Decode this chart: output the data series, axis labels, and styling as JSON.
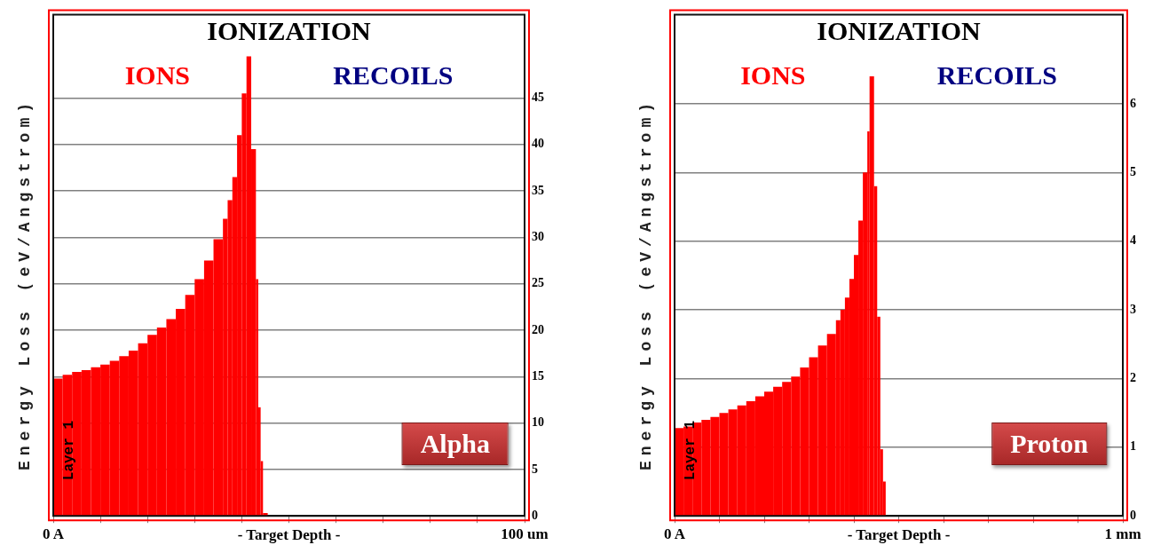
{
  "chart_data": [
    {
      "type": "histogram",
      "title": "IONIZATION",
      "xlabel": "- Target Depth -",
      "ylabel": "Energy Loss (eV/Angstrom)",
      "bins": [
        0,
        2,
        4,
        6,
        8,
        10,
        12,
        14,
        16,
        18,
        20,
        22,
        24,
        26,
        28,
        30,
        32,
        34,
        36,
        37,
        38,
        39,
        40,
        41,
        42,
        43,
        43.5,
        44,
        44.5,
        45.5
      ],
      "series": [
        {
          "name": "IONS",
          "color": "#ff0000",
          "values": [
            14.8,
            15.2,
            15.5,
            15.7,
            16.0,
            16.3,
            16.7,
            17.2,
            17.8,
            18.6,
            19.5,
            20.3,
            21.2,
            22.3,
            23.8,
            25.5,
            27.5,
            29.8,
            32,
            34,
            36.5,
            41,
            45.5,
            49.5,
            39.5,
            25.5,
            11.7,
            5.9,
            0.3
          ]
        }
      ],
      "xlim": [
        0,
        100
      ],
      "xticks": [
        {
          "value": 0,
          "label": "0 A"
        },
        {
          "value": 10,
          "label": null
        },
        {
          "value": 20,
          "label": null
        },
        {
          "value": 30,
          "label": null
        },
        {
          "value": 40,
          "label": null
        },
        {
          "value": 50,
          "label": null
        },
        {
          "value": 60,
          "label": null
        },
        {
          "value": 70,
          "label": null
        },
        {
          "value": 80,
          "label": null
        },
        {
          "value": 90,
          "label": null
        },
        {
          "value": 100,
          "label": "100 um"
        }
      ],
      "ylim": [
        0,
        54
      ],
      "yticks": [
        0,
        5,
        10,
        15,
        20,
        25,
        30,
        35,
        40,
        45
      ],
      "grid": "y",
      "legend": "top",
      "annotations": [
        "Layer 1",
        "Alpha",
        "RECOILS"
      ]
    },
    {
      "type": "histogram",
      "title": "IONIZATION",
      "xlabel": "- Target Depth -",
      "ylabel": "Energy Loss (eV/Angstrom)",
      "bins": [
        0,
        0.02,
        0.04,
        0.06,
        0.08,
        0.1,
        0.12,
        0.14,
        0.16,
        0.18,
        0.2,
        0.22,
        0.24,
        0.26,
        0.28,
        0.3,
        0.32,
        0.34,
        0.36,
        0.37,
        0.38,
        0.39,
        0.4,
        0.41,
        0.42,
        0.43,
        0.435,
        0.445,
        0.452,
        0.459,
        0.465,
        0.471
      ],
      "series": [
        {
          "name": "IONS",
          "color": "#ff0000",
          "values": [
            1.28,
            1.3,
            1.36,
            1.4,
            1.44,
            1.5,
            1.55,
            1.61,
            1.67,
            1.74,
            1.81,
            1.88,
            1.95,
            2.03,
            2.16,
            2.31,
            2.48,
            2.65,
            2.85,
            3.0,
            3.18,
            3.45,
            3.8,
            4.3,
            5.0,
            5.6,
            6.4,
            4.8,
            2.9,
            0.97,
            0.5
          ]
        }
      ],
      "xlim": [
        0,
        1
      ],
      "xticks": [
        {
          "value": 0,
          "label": "0 A"
        },
        {
          "value": 0.1,
          "label": null
        },
        {
          "value": 0.2,
          "label": null
        },
        {
          "value": 0.3,
          "label": null
        },
        {
          "value": 0.4,
          "label": null
        },
        {
          "value": 0.5,
          "label": null
        },
        {
          "value": 0.6,
          "label": null
        },
        {
          "value": 0.7,
          "label": null
        },
        {
          "value": 0.8,
          "label": null
        },
        {
          "value": 0.9,
          "label": null
        },
        {
          "value": 1,
          "label": "1 mm"
        }
      ],
      "ylim": [
        0,
        7.3
      ],
      "yticks": [
        0,
        1,
        2,
        3,
        4,
        5,
        6
      ],
      "grid": "y",
      "legend": "top",
      "annotations": [
        "Layer 1",
        "Proton",
        "RECOILS"
      ]
    }
  ]
}
